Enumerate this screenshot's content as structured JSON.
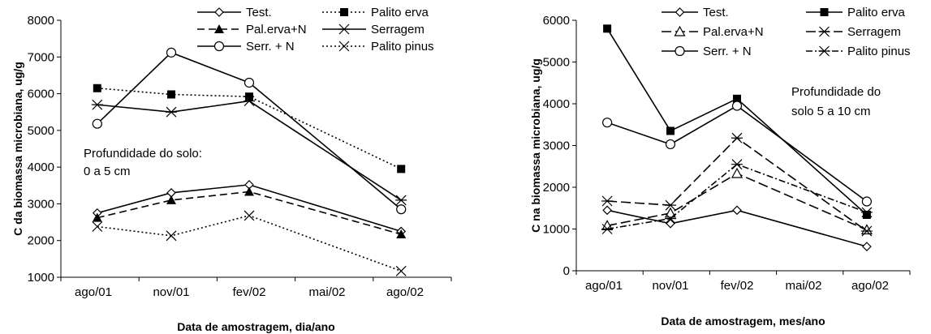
{
  "chart_data": [
    {
      "type": "line",
      "xlabel": "Data de amostragem, dia/ano",
      "ylabel": "C da biomassa microbiana, ug/g",
      "x_ticks": [
        "ago/01",
        "nov/01",
        "fev/02",
        "mai/02",
        "ago/02"
      ],
      "ylim": [
        1000,
        8000
      ],
      "y_ticks": [
        "1000",
        "2000",
        "3000",
        "4000",
        "5000",
        "6000",
        "7000",
        "8000"
      ],
      "annotation": [
        "Profundidade do solo:",
        "0 a 5 cm"
      ],
      "series": [
        {
          "name": "Test.",
          "x": [
            0.05,
            1.0,
            2.0,
            3.95
          ],
          "values": [
            2750,
            3300,
            3520,
            2250
          ],
          "color": "#000000",
          "dash": "solid",
          "marker": "diamond"
        },
        {
          "name": "Palito erva",
          "x": [
            0.05,
            1.0,
            2.0,
            3.95
          ],
          "values": [
            6150,
            5980,
            5920,
            3950
          ],
          "color": "#000000",
          "dash": "dot",
          "marker": "square-filled"
        },
        {
          "name": "Pal.erva+N",
          "x": [
            0.05,
            1.0,
            2.0,
            3.95
          ],
          "values": [
            2620,
            3100,
            3330,
            2170
          ],
          "color": "#000000",
          "dash": "dash",
          "marker": "triangle-filled"
        },
        {
          "name": "Serragem",
          "x": [
            0.05,
            1.0,
            2.0,
            3.95
          ],
          "values": [
            5700,
            5500,
            5800,
            3100
          ],
          "color": "#000000",
          "dash": "solid",
          "marker": "star"
        },
        {
          "name": "Serr. + N",
          "x": [
            0.05,
            1.0,
            2.0,
            3.95
          ],
          "values": [
            5180,
            7120,
            6300,
            2850
          ],
          "color": "#000000",
          "dash": "solid",
          "marker": "circle"
        },
        {
          "name": "Palito pinus",
          "x": [
            0.05,
            1.0,
            2.0,
            3.95
          ],
          "values": [
            2380,
            2130,
            2680,
            1170
          ],
          "color": "#000000",
          "dash": "dot",
          "marker": "x"
        }
      ]
    },
    {
      "type": "line",
      "xlabel": "Data de amostragem, mes/ano",
      "ylabel": "C na biomassa microbiana, ug/g",
      "x_ticks": [
        "ago/01",
        "nov/01",
        "fev/02",
        "mai/02",
        "ago/02"
      ],
      "ylim": [
        0,
        6000
      ],
      "y_ticks": [
        "0",
        "1000",
        "2000",
        "3000",
        "4000",
        "5000",
        "6000"
      ],
      "annotation": [
        "Profundidade do",
        "solo 5 a 10 cm"
      ],
      "series": [
        {
          "name": "Test.",
          "x": [
            0.05,
            1.0,
            2.0,
            3.95
          ],
          "values": [
            1450,
            1130,
            1450,
            580
          ],
          "color": "#000000",
          "dash": "solid",
          "marker": "diamond"
        },
        {
          "name": "Palito erva",
          "x": [
            0.05,
            1.0,
            2.0,
            3.95
          ],
          "values": [
            5800,
            3350,
            4120,
            1340
          ],
          "color": "#000000",
          "dash": "solid",
          "marker": "square-filled"
        },
        {
          "name": "Pal.erva+N",
          "x": [
            0.05,
            1.0,
            2.0,
            3.95
          ],
          "values": [
            1080,
            1380,
            2330,
            980
          ],
          "color": "#000000",
          "dash": "longdash",
          "marker": "triangle"
        },
        {
          "name": "Serragem",
          "x": [
            0.05,
            1.0,
            2.0,
            3.95
          ],
          "values": [
            1670,
            1570,
            3180,
            950
          ],
          "color": "#000000",
          "dash": "longdash",
          "marker": "star"
        },
        {
          "name": "Serr. + N",
          "x": [
            0.05,
            1.0,
            2.0,
            3.95
          ],
          "values": [
            3550,
            3030,
            3950,
            1660
          ],
          "color": "#000000",
          "dash": "solid",
          "marker": "circle"
        },
        {
          "name": "Palito pinus",
          "x": [
            0.05,
            1.0,
            2.0,
            3.95
          ],
          "values": [
            1000,
            1250,
            2550,
            1400
          ],
          "color": "#000000",
          "dash": "dashdot",
          "marker": "star"
        }
      ]
    }
  ]
}
